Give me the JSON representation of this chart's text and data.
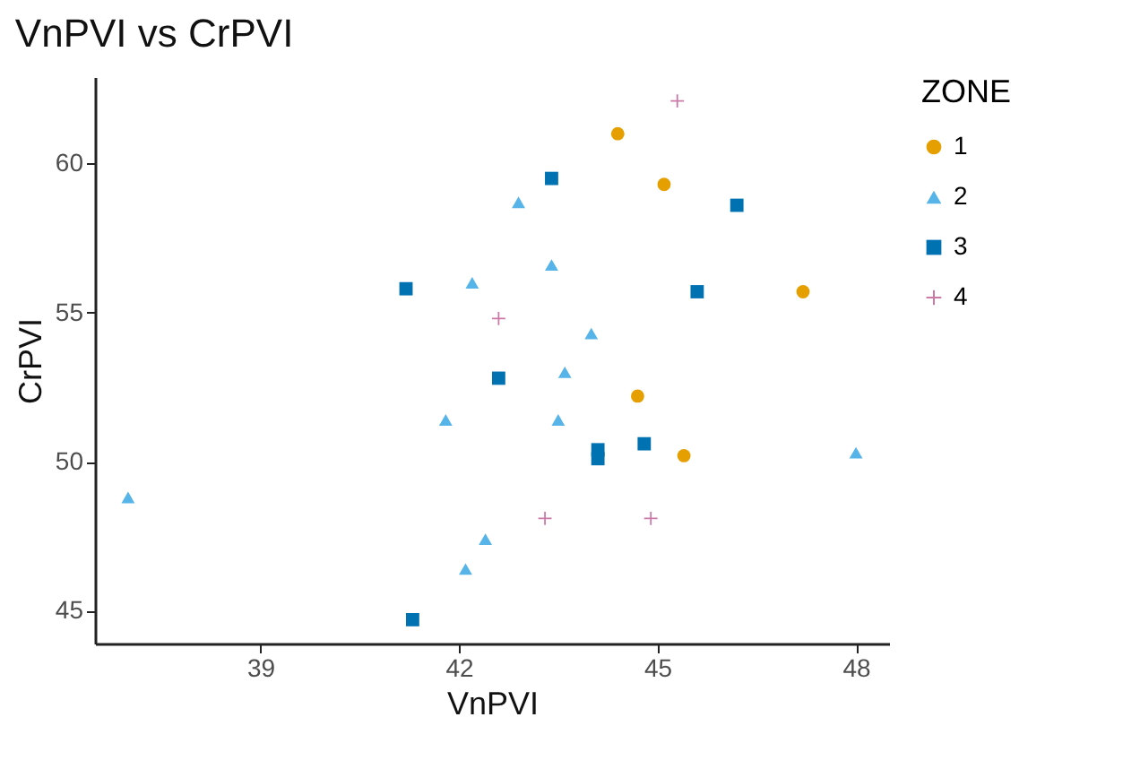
{
  "chart_data": {
    "type": "scatter",
    "title": "VnPVI vs CrPVI",
    "xlabel": "VnPVI",
    "ylabel": "CrPVI",
    "legend_title": "ZONE",
    "legend": "right",
    "grid": false,
    "xlim": [
      36.5,
      48.5
    ],
    "xticks": [
      39,
      42,
      45,
      48
    ],
    "ylim": [
      43.9,
      62.9
    ],
    "yticks": [
      45,
      50,
      55,
      60
    ],
    "series": [
      {
        "name": "1",
        "color": "#e69f00",
        "marker": "circle",
        "x": [
          44.4,
          45.1,
          47.2,
          44.7,
          45.4
        ],
        "values": [
          61.0,
          59.3,
          55.7,
          52.2,
          50.2
        ]
      },
      {
        "name": "2",
        "color": "#56b4e9",
        "marker": "triangle",
        "x": [
          37.0,
          42.9,
          42.2,
          43.4,
          44.0,
          43.6,
          41.8,
          43.5,
          48.0,
          42.4,
          42.1
        ],
        "values": [
          48.8,
          58.7,
          56.0,
          56.6,
          54.3,
          53.0,
          51.4,
          51.4,
          50.3,
          47.4,
          46.4
        ]
      },
      {
        "name": "3",
        "color": "#0072b2",
        "marker": "square",
        "x": [
          41.2,
          43.4,
          46.2,
          45.6,
          42.6,
          44.1,
          44.1,
          44.8,
          41.3
        ],
        "values": [
          55.8,
          59.5,
          58.6,
          55.7,
          52.8,
          50.4,
          50.1,
          50.6,
          44.7
        ]
      },
      {
        "name": "4",
        "color": "#cc79a7",
        "marker": "cross",
        "x": [
          45.3,
          42.6,
          43.3,
          44.9
        ],
        "values": [
          62.1,
          54.8,
          48.1,
          48.1
        ]
      }
    ]
  }
}
